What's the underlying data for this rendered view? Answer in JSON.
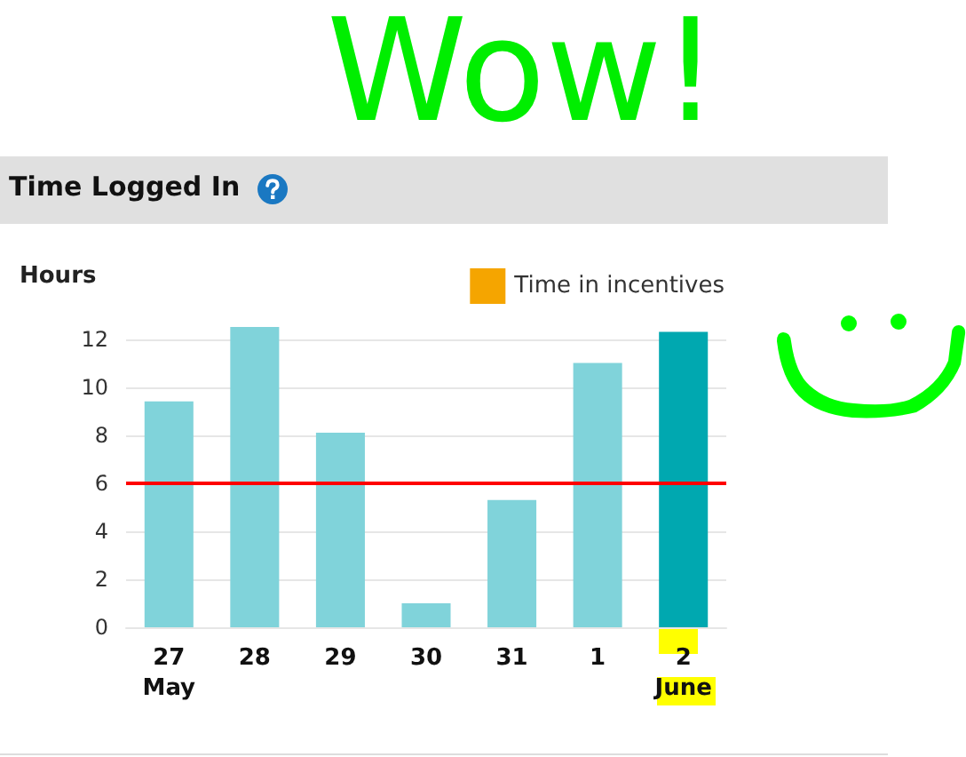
{
  "chart_data": {
    "type": "bar",
    "title": "Time Logged In",
    "ylabel": "Hours",
    "categories": [
      "27\nMay",
      "28",
      "29",
      "30",
      "31",
      "1",
      "2\nJune"
    ],
    "series": [
      {
        "colors": [
          "#80d3da",
          "#80d3da",
          "#80d3da",
          "#80d3da",
          "#80d3da",
          "#80d3da",
          "#00a8b0"
        ],
        "values": [
          9.4,
          12.5,
          8.1,
          1.0,
          5.3,
          11.0,
          12.3
        ]
      },
      {
        "name": "Time in incentives",
        "color": "#f5a500",
        "values": [
          null,
          null,
          null,
          null,
          null,
          null,
          null
        ]
      }
    ],
    "stacked": true,
    "ylim": [
      0,
      12.5
    ],
    "yticks": [
      0,
      2,
      4,
      6,
      8,
      10,
      12
    ],
    "grid": "y",
    "legend": "top right",
    "ref_lines": [
      {
        "axis": "y",
        "value": 6,
        "color": "#ff0000"
      }
    ],
    "annotations": [
      "Wow!"
    ]
  }
}
